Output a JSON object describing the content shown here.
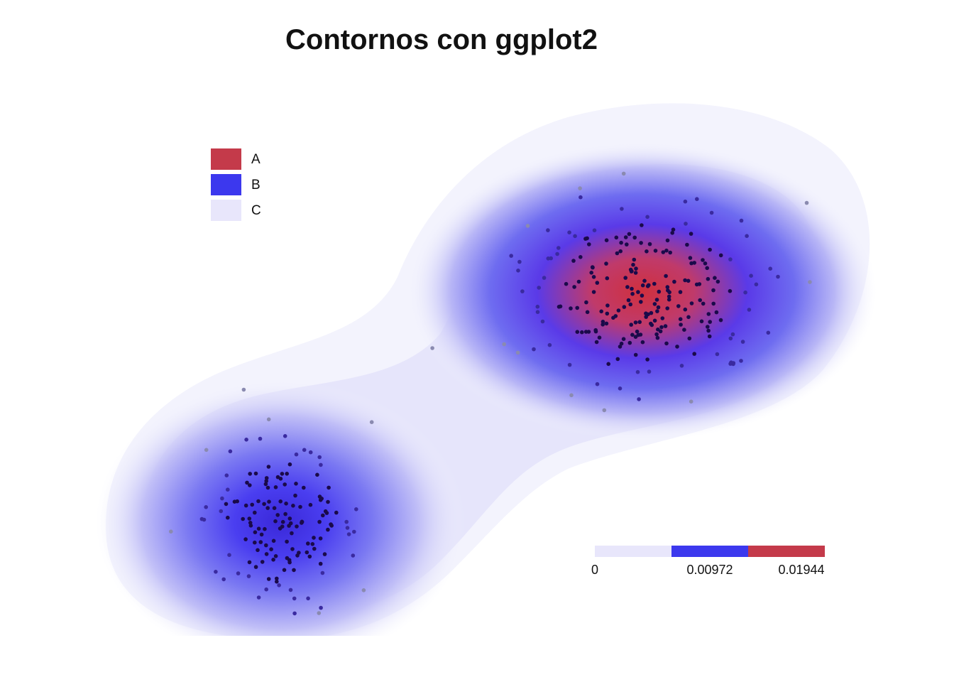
{
  "chart_data": {
    "type": "contour",
    "title": "Contornos con ggplot2",
    "xlabel": "",
    "ylabel": "",
    "legend": {
      "placement": "top-left",
      "items": [
        {
          "label": "A",
          "color": "#c43a4a"
        },
        {
          "label": "B",
          "color": "#3c38ee"
        },
        {
          "label": "C",
          "color": "#e8e6fb"
        }
      ]
    },
    "color_scale": {
      "ticks": [
        "0",
        "0.00972",
        "0.01944"
      ],
      "segments": [
        "#e8e6fb",
        "#3c38ee",
        "#c43a4a"
      ]
    },
    "clusters": [
      {
        "center": [
          3,
          3
        ],
        "peak_density": 0.013
      },
      {
        "center": [
          7,
          7
        ],
        "peak_density": 0.01944
      }
    ]
  }
}
